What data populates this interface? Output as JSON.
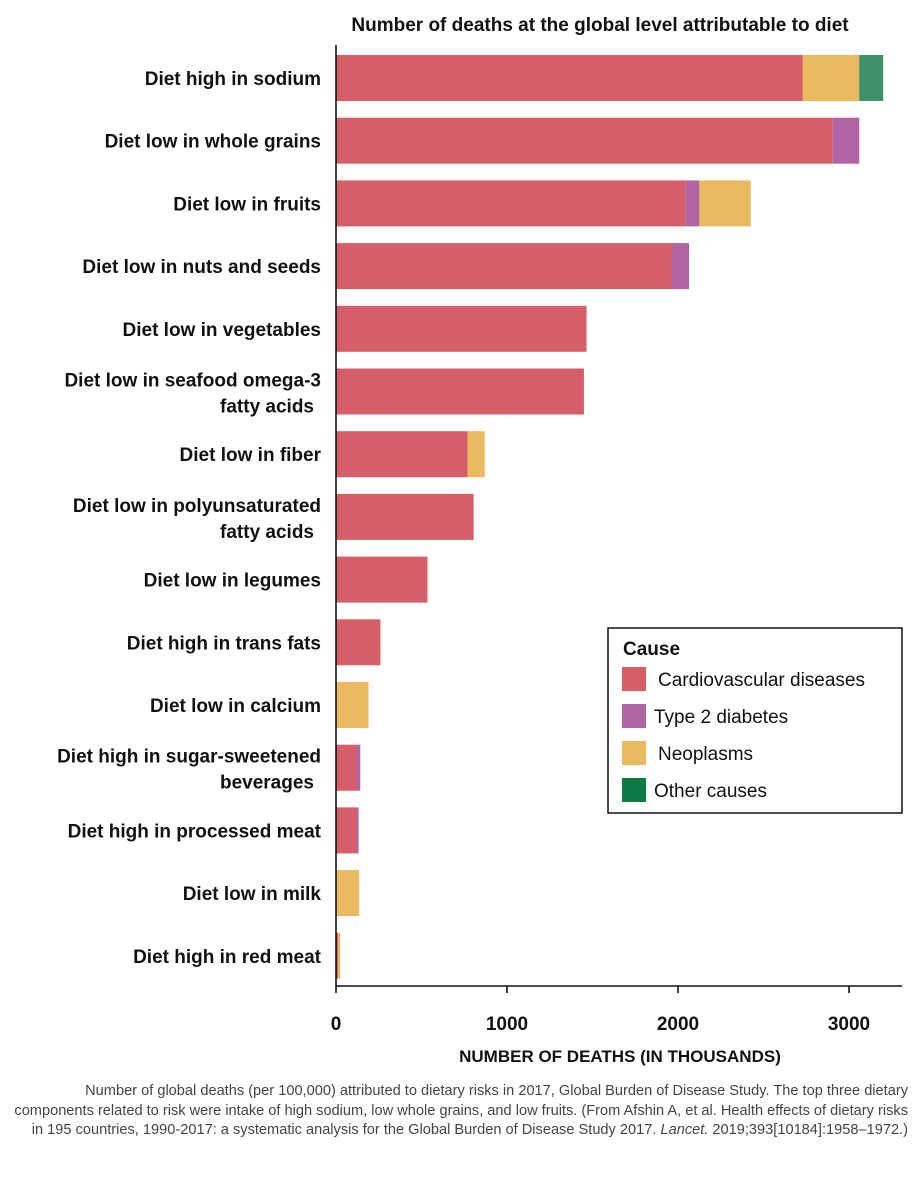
{
  "chart_data": {
    "type": "bar",
    "orientation": "horizontal",
    "stacked": true,
    "title": "Number of deaths at the global level attributable to diet",
    "xlabel": "NUMBER OF DEATHS (IN THOUSANDS)",
    "ylabel": "",
    "xlim": [
      0,
      3250
    ],
    "xticks": [
      0,
      1000,
      2000,
      3000
    ],
    "grid": false,
    "legend_position": "right",
    "categories": [
      [
        "Diet high in sodium"
      ],
      [
        "Diet low in whole grains"
      ],
      [
        "Diet low in fruits"
      ],
      [
        "Diet low in nuts and seeds"
      ],
      [
        "Diet low in vegetables"
      ],
      [
        "Diet low in seafood omega-3",
        "fatty acids"
      ],
      [
        "Diet low in fiber"
      ],
      [
        "Diet low in polyunsaturated",
        "fatty acids"
      ],
      [
        "Diet low in legumes"
      ],
      [
        "Diet high in trans fats"
      ],
      [
        "Diet low in calcium"
      ],
      [
        "Diet high in sugar-sweetened",
        "beverages"
      ],
      [
        "Diet high in processed meat"
      ],
      [
        "Diet low in milk"
      ],
      [
        "Diet high in red meat"
      ]
    ],
    "series": [
      {
        "name": "Cardiovascular diseases",
        "color": "#d65e68",
        "values": [
          2730,
          2905,
          2045,
          1965,
          1465,
          1450,
          770,
          805,
          535,
          260,
          0,
          120,
          120,
          0,
          12
        ]
      },
      {
        "name": "Type 2 diabetes",
        "color": "#b064a4",
        "values": [
          0,
          155,
          80,
          100,
          0,
          0,
          0,
          0,
          0,
          0,
          0,
          22,
          12,
          0,
          0
        ]
      },
      {
        "name": "Neoplasms",
        "color": "#e9b960",
        "values": [
          330,
          0,
          300,
          0,
          0,
          0,
          100,
          0,
          0,
          0,
          190,
          0,
          0,
          135,
          12
        ]
      },
      {
        "name": "Other causes",
        "color": "#3f8f6a",
        "values": [
          140,
          0,
          0,
          0,
          0,
          0,
          0,
          0,
          0,
          0,
          0,
          0,
          0,
          0,
          0
        ]
      }
    ],
    "legend": {
      "title": "Cause",
      "entries": [
        {
          "label": "Cardiovascular diseases",
          "color": "#d65e68"
        },
        {
          "label": "Type 2 diabetes",
          "color": "#b064a4"
        },
        {
          "label": "Neoplasms",
          "color": "#e9b960"
        },
        {
          "label": "Other causes",
          "color": "#0e7a46"
        }
      ]
    }
  },
  "caption": {
    "before_journal": "Number of global deaths (per 100,000) attributed to dietary risks in 2017, Global Burden of Disease Study. The top three dietary components related to risk were intake of high sodium, low whole grains, and low fruits. (From Afshin A, et al. Health effects of dietary risks in 195 countries, 1990-2017: a systematic analysis for the Global Burden of Disease Study 2017. ",
    "journal": "Lancet.",
    "after_journal": " 2019;393[10184]:1958–1972.)"
  }
}
